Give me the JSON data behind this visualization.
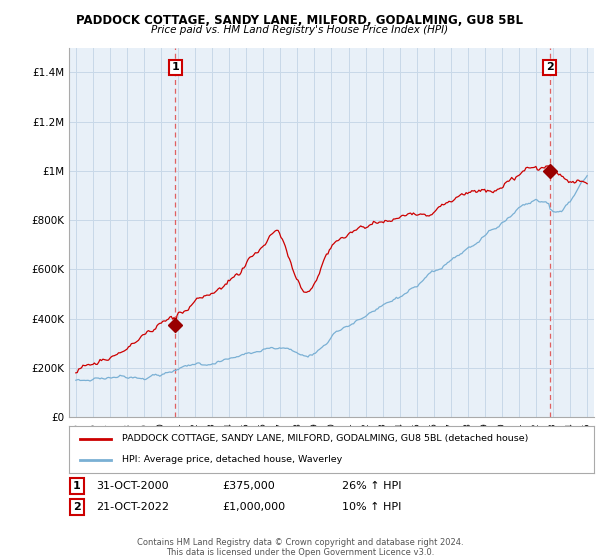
{
  "title": "PADDOCK COTTAGE, SANDY LANE, MILFORD, GODALMING, GU8 5BL",
  "subtitle": "Price paid vs. HM Land Registry's House Price Index (HPI)",
  "legend_line1": "PADDOCK COTTAGE, SANDY LANE, MILFORD, GODALMING, GU8 5BL (detached house)",
  "legend_line2": "HPI: Average price, detached house, Waverley",
  "footer": "Contains HM Land Registry data © Crown copyright and database right 2024.\nThis data is licensed under the Open Government Licence v3.0.",
  "sale1_label": "1",
  "sale1_date": "31-OCT-2000",
  "sale1_price": "£375,000",
  "sale1_hpi": "26% ↑ HPI",
  "sale2_label": "2",
  "sale2_date": "21-OCT-2022",
  "sale2_price": "£1,000,000",
  "sale2_hpi": "10% ↑ HPI",
  "ylim": [
    0,
    1500000
  ],
  "yticks": [
    0,
    200000,
    400000,
    600000,
    800000,
    1000000,
    1200000,
    1400000
  ],
  "ytick_labels": [
    "£0",
    "£200K",
    "£400K",
    "£600K",
    "£800K",
    "£1M",
    "£1.2M",
    "£1.4M"
  ],
  "sale1_year": 2000.83,
  "sale1_value": 375000,
  "sale2_year": 2022.8,
  "sale2_value": 1000000,
  "hpi_color": "#7ab0d4",
  "price_color": "#cc0000",
  "vline_color": "#e06060",
  "marker_color": "#990000",
  "grid_color": "#c8d8e8",
  "chart_bg": "#e8f0f8",
  "background_color": "#ffffff"
}
